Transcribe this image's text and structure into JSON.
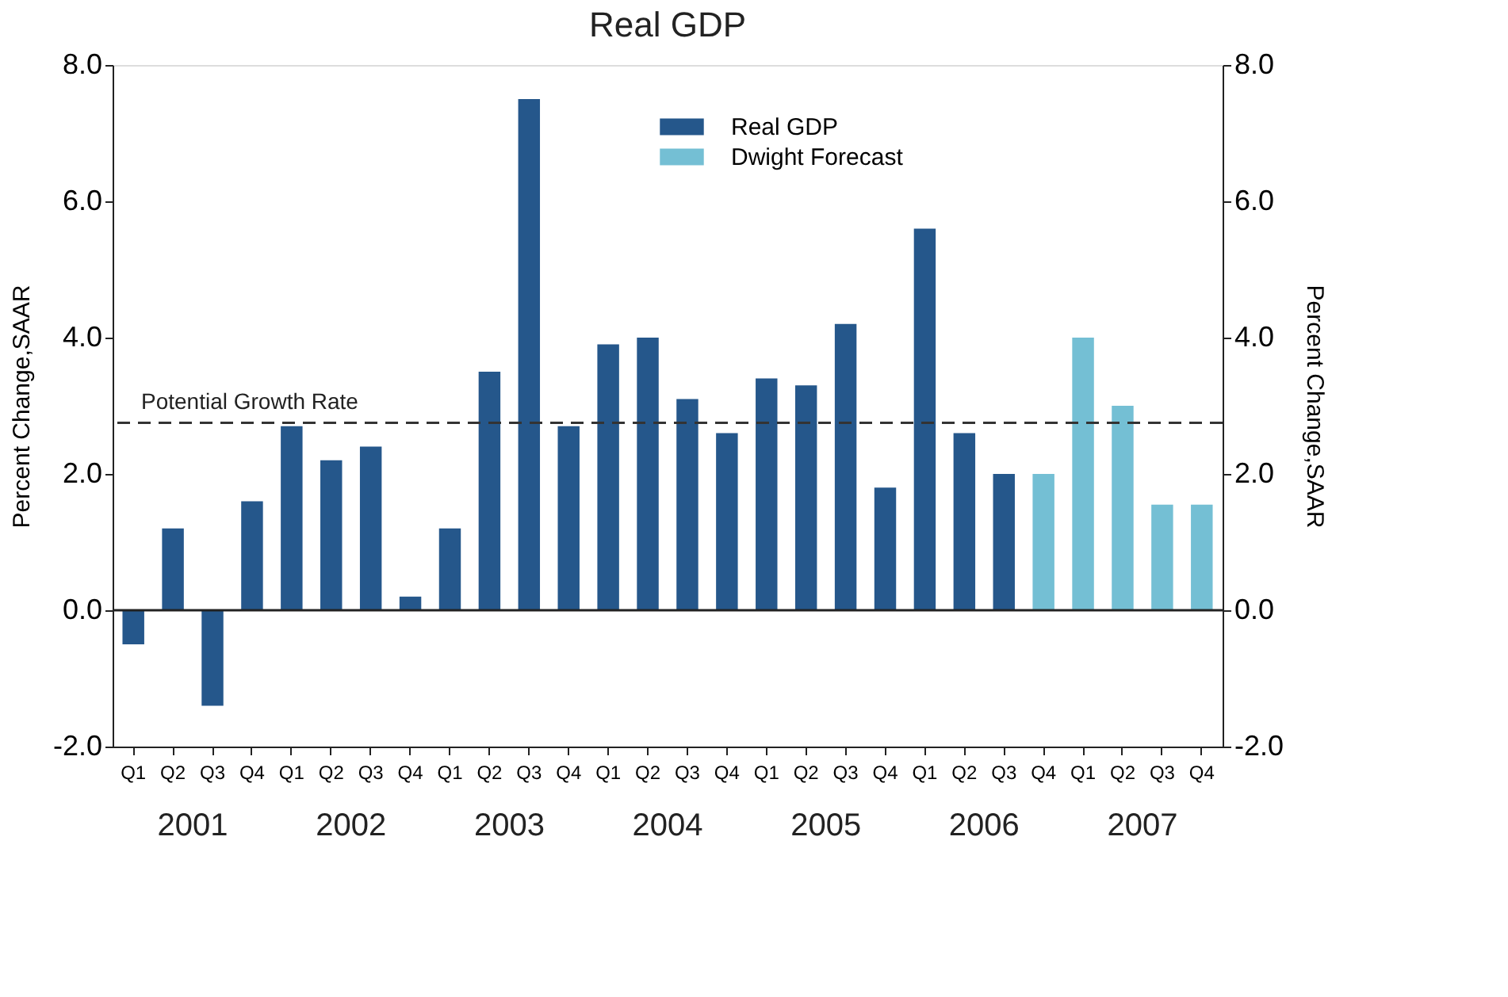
{
  "chart_data": {
    "type": "bar",
    "title": "Real GDP",
    "categories": [
      "Q1",
      "Q2",
      "Q3",
      "Q4",
      "Q1",
      "Q2",
      "Q3",
      "Q4",
      "Q1",
      "Q2",
      "Q3",
      "Q4",
      "Q1",
      "Q2",
      "Q3",
      "Q4",
      "Q1",
      "Q2",
      "Q3",
      "Q4",
      "Q1",
      "Q2",
      "Q3",
      "Q4",
      "Q1",
      "Q2",
      "Q3",
      "Q4"
    ],
    "series": [
      {
        "name": "Real GDP",
        "color": "#25578b",
        "values": [
          -0.5,
          1.2,
          -1.4,
          1.6,
          2.7,
          2.2,
          2.4,
          0.2,
          1.2,
          3.5,
          7.5,
          2.7,
          3.9,
          4.0,
          3.1,
          2.6,
          3.4,
          3.3,
          4.2,
          1.8,
          5.6,
          2.6,
          2.0,
          null,
          null,
          null,
          null,
          null
        ]
      },
      {
        "name": "Dwight Forecast",
        "color": "#74bfd4",
        "values": [
          null,
          null,
          null,
          null,
          null,
          null,
          null,
          null,
          null,
          null,
          null,
          null,
          null,
          null,
          null,
          null,
          null,
          null,
          null,
          null,
          null,
          null,
          null,
          2.0,
          4.0,
          3.0,
          1.55,
          1.55
        ]
      }
    ],
    "annotations": [
      "2001",
      "2002",
      "2003",
      "2004",
      "2005",
      "2006",
      "2007"
    ],
    "ylabel": "Percent Change,SAAR",
    "y2label": "Percent Change,SAAR",
    "ylim": [
      -2,
      8
    ],
    "yticks": [
      {
        "value": -2,
        "label": "-2.0"
      },
      {
        "value": 0,
        "label": "0.0"
      },
      {
        "value": 2,
        "label": "2.0"
      },
      {
        "value": 4,
        "label": "4.0"
      },
      {
        "value": 6,
        "label": "6.0"
      },
      {
        "value": 8,
        "label": "8.0"
      }
    ],
    "y2lim": [
      -2,
      8
    ],
    "y2ticks": [
      {
        "value": -2,
        "label": "-2.0"
      },
      {
        "value": 0,
        "label": "0.0"
      },
      {
        "value": 2,
        "label": "2.0"
      },
      {
        "value": 4,
        "label": "4.0"
      },
      {
        "value": 6,
        "label": "6.0"
      },
      {
        "value": 8,
        "label": "8.0"
      }
    ],
    "ref_lines": [
      {
        "axis": "y",
        "value": 2.75,
        "label": "Potential Growth Rate",
        "color": "#333333",
        "line_style": "dashed"
      },
      {
        "axis": "y",
        "value": 0,
        "color": "#222222",
        "line_style": "solid"
      }
    ],
    "grid": false,
    "legend": "top"
  }
}
